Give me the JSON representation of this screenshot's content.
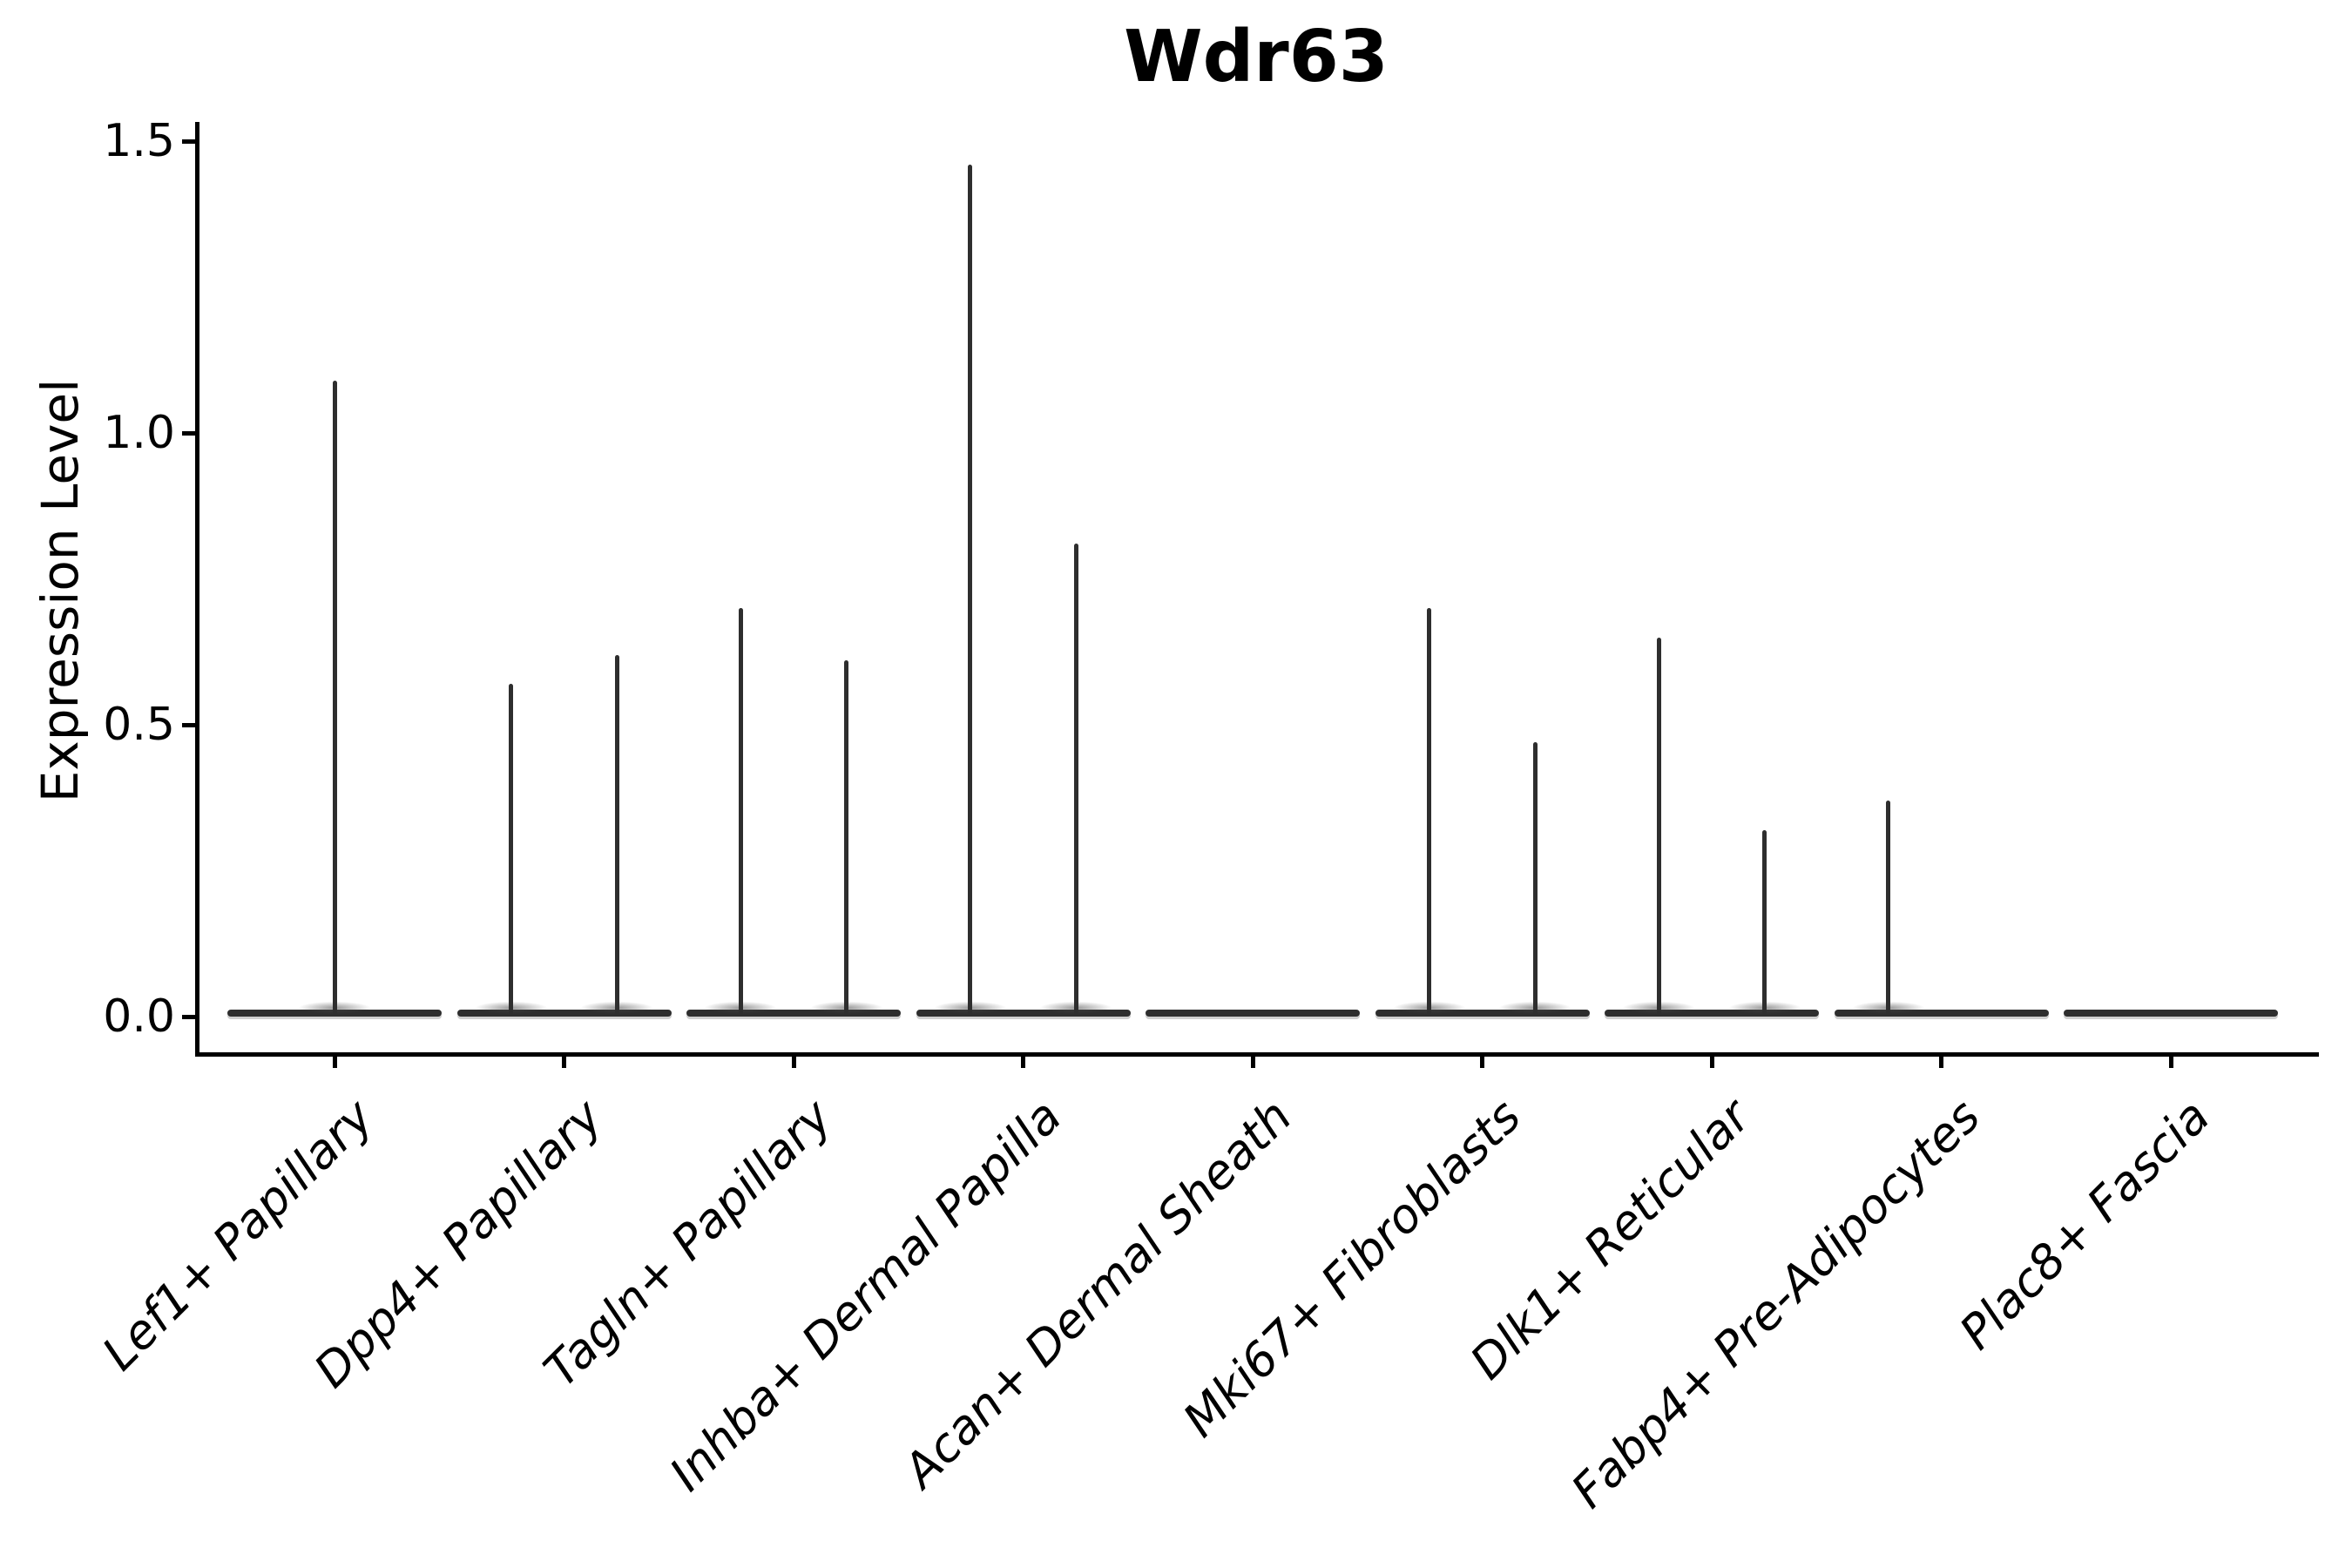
{
  "title": "Wdr63",
  "y_axis": {
    "label": "Expression Level",
    "tick_labels": [
      "0.0",
      "0.5",
      "1.0",
      "1.5"
    ]
  },
  "chart_data": {
    "type": "violin",
    "title": "Wdr63",
    "xlabel": "",
    "ylabel": "Expression Level",
    "ylim": [
      0,
      1.5
    ],
    "y_ticks": [
      0.0,
      0.5,
      1.0,
      1.5
    ],
    "grid": false,
    "legend": "none",
    "x_tick_label_style": "italic, rotated 45deg, right-anchored",
    "violin_color": "#2e2e2e",
    "axis_color": "#000000",
    "categories": [
      "Lef1+ Papillary",
      "Dpp4+ Papillary",
      "Tagln+ Papillary",
      "Inhba+ Dermal Papilla",
      "Acan+ Dermal Sheath",
      "Mki67+ Fibroblasts",
      "Dlk1+ Reticular",
      "Fabp4+ Pre-Adipocytes",
      "Plac8+ Fascia"
    ],
    "series": [
      {
        "category": "Lef1+ Papillary",
        "spikes": [
          {
            "offset": 0,
            "value": 1.09
          }
        ]
      },
      {
        "category": "Dpp4+ Papillary",
        "spikes": [
          {
            "offset": -0.23,
            "value": 0.57
          },
          {
            "offset": 0.23,
            "value": 0.62
          }
        ]
      },
      {
        "category": "Tagln+ Papillary",
        "spikes": [
          {
            "offset": -0.23,
            "value": 0.7
          },
          {
            "offset": 0.23,
            "value": 0.61
          }
        ]
      },
      {
        "category": "Inhba+ Dermal Papilla",
        "spikes": [
          {
            "offset": -0.23,
            "value": 1.46
          },
          {
            "offset": 0.23,
            "value": 0.81
          }
        ]
      },
      {
        "category": "Acan+ Dermal Sheath",
        "spikes": []
      },
      {
        "category": "Mki67+ Fibroblasts",
        "spikes": [
          {
            "offset": -0.23,
            "value": 0.7
          },
          {
            "offset": 0.23,
            "value": 0.47
          }
        ]
      },
      {
        "category": "Dlk1+ Reticular",
        "spikes": [
          {
            "offset": -0.23,
            "value": 0.65
          },
          {
            "offset": 0.23,
            "value": 0.32
          }
        ]
      },
      {
        "category": "Fabp4+ Pre-Adipocytes",
        "spikes": [
          {
            "offset": -0.23,
            "value": 0.37
          }
        ]
      },
      {
        "category": "Plac8+ Fascia",
        "spikes": []
      }
    ],
    "baseline_value": 0.0
  }
}
